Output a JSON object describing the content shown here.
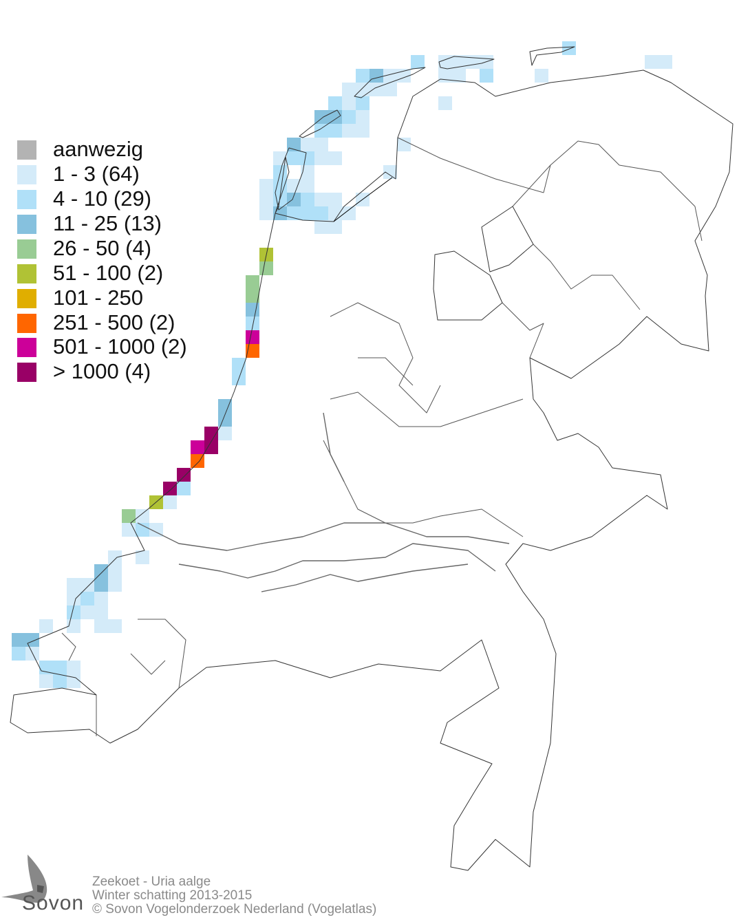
{
  "legend": {
    "items": [
      {
        "label": "aanwezig",
        "color": "#b3b3b3"
      },
      {
        "label": "1 - 3 (64)",
        "color": "#d4ebf9"
      },
      {
        "label": "4 - 10 (29)",
        "color": "#b0e0f8"
      },
      {
        "label": "11 - 25 (13)",
        "color": "#86c1de"
      },
      {
        "label": "26 - 50 (4)",
        "color": "#99cc94"
      },
      {
        "label": "51 - 100 (2)",
        "color": "#b0c235"
      },
      {
        "label": "101 - 250",
        "color": "#e0ae00"
      },
      {
        "label": "251 - 500 (2)",
        "color": "#ff6600"
      },
      {
        "label": "501 - 1000 (2)",
        "color": "#cc0099"
      },
      {
        "label": "> 1000 (4)",
        "color": "#990066"
      }
    ]
  },
  "footer": {
    "species": "Zeekoet - Uria aalge",
    "period": "Winter schatting 2013-2015",
    "copyright": "© Sovon Vogelonderzoek Nederland (Vogelatlas)"
  },
  "logo": {
    "text": "Sovon"
  }
}
